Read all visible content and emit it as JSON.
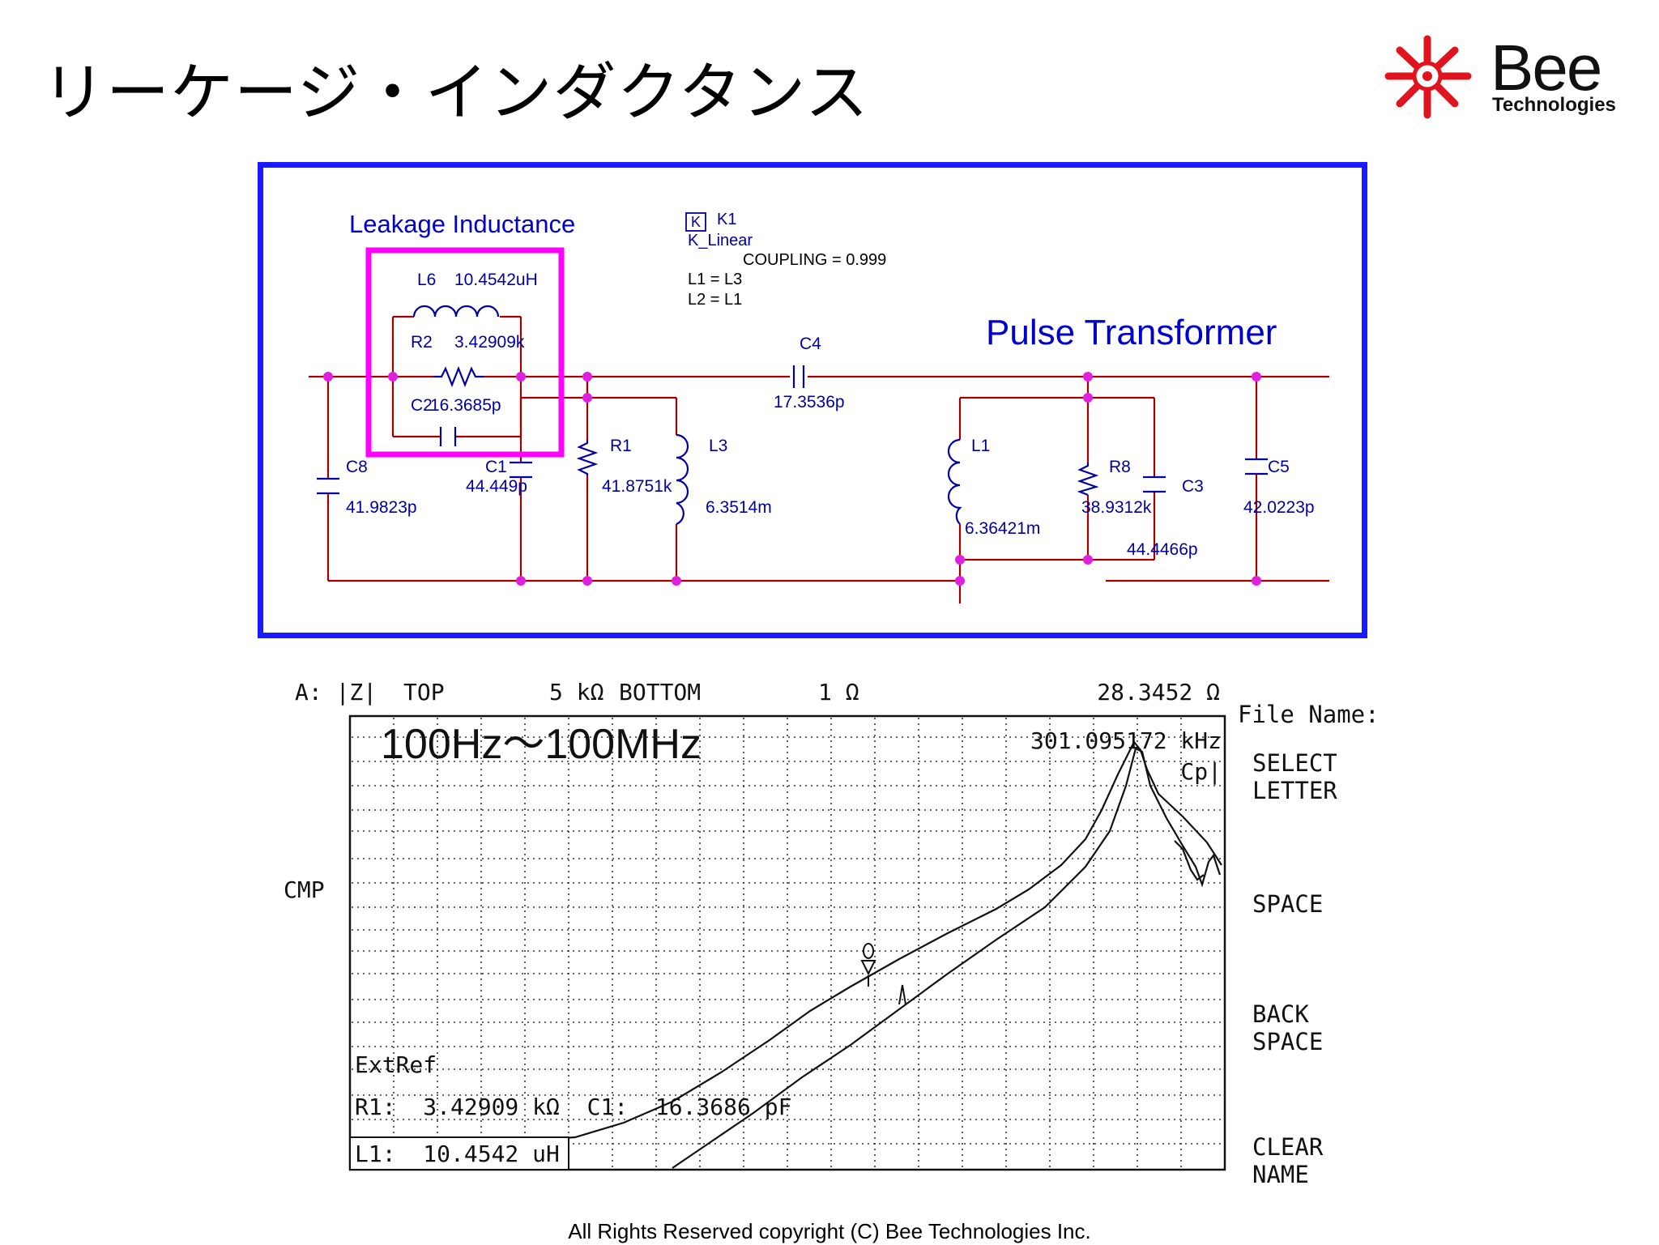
{
  "page": {
    "title": "リーケージ・インダクタンス",
    "logo_word": "Bee",
    "logo_sub": "Technologies",
    "footer": "All Rights Reserved copyright (C) Bee Technologies Inc."
  },
  "schematic": {
    "leakage_label": "Leakage Inductance",
    "transformer_label": "Pulse Transformer",
    "k_block": {
      "icon": "K",
      "name": "K1",
      "model": "K_Linear",
      "coupling": "COUPLING = 0.999",
      "l1": "L1 = L3",
      "l2": "L2 = L1"
    },
    "components": {
      "L6": {
        "name": "L6",
        "value": "10.4542uH"
      },
      "R2": {
        "name": "R2",
        "value": "3.42909k"
      },
      "C2": {
        "name": "C2",
        "value": "16.3685p"
      },
      "C8": {
        "name": "C8",
        "value": "41.9823p"
      },
      "C1": {
        "name": "C1",
        "value": "44.449p"
      },
      "R1": {
        "name": "R1",
        "value": "41.8751k"
      },
      "L3": {
        "name": "L3",
        "value": "6.3514m"
      },
      "C4": {
        "name": "C4",
        "value": "17.3536p"
      },
      "L1": {
        "name": "L1",
        "value": "6.36421m"
      },
      "R8": {
        "name": "R8",
        "value": "38.9312k"
      },
      "C3": {
        "name": "C3",
        "value": "44.4466p"
      },
      "C5": {
        "name": "C5",
        "value": "42.0223p"
      }
    },
    "colors": {
      "wire": "#a00000",
      "label": "#0000a0",
      "junction": "#e020e0",
      "highlight": "#ff00ff",
      "border": "#1a1aff"
    }
  },
  "analyzer": {
    "header": {
      "trace": "A: |Z|",
      "top_label": "TOP",
      "top_value": "5 kΩ",
      "bottom_label": "BOTTOM",
      "bottom_value": "1 Ω",
      "marker_value": "28.3452 Ω"
    },
    "range_note": "100Hz～100MHz",
    "marker_freq": "301.095172 kHz",
    "mode": "Cp|",
    "side_label": "CMP",
    "extref": "ExtRef",
    "r1_line": "R1:  3.42909 kΩ  C1:  16.3686 pF",
    "l1_line": "L1:  10.4542 uH",
    "menu": {
      "file_name": "File Name:",
      "select_letter": [
        "SELECT",
        "LETTER"
      ],
      "space": "SPACE",
      "back_space": [
        "BACK",
        "SPACE"
      ],
      "clear_name": [
        "CLEAR",
        "NAME"
      ]
    }
  }
}
